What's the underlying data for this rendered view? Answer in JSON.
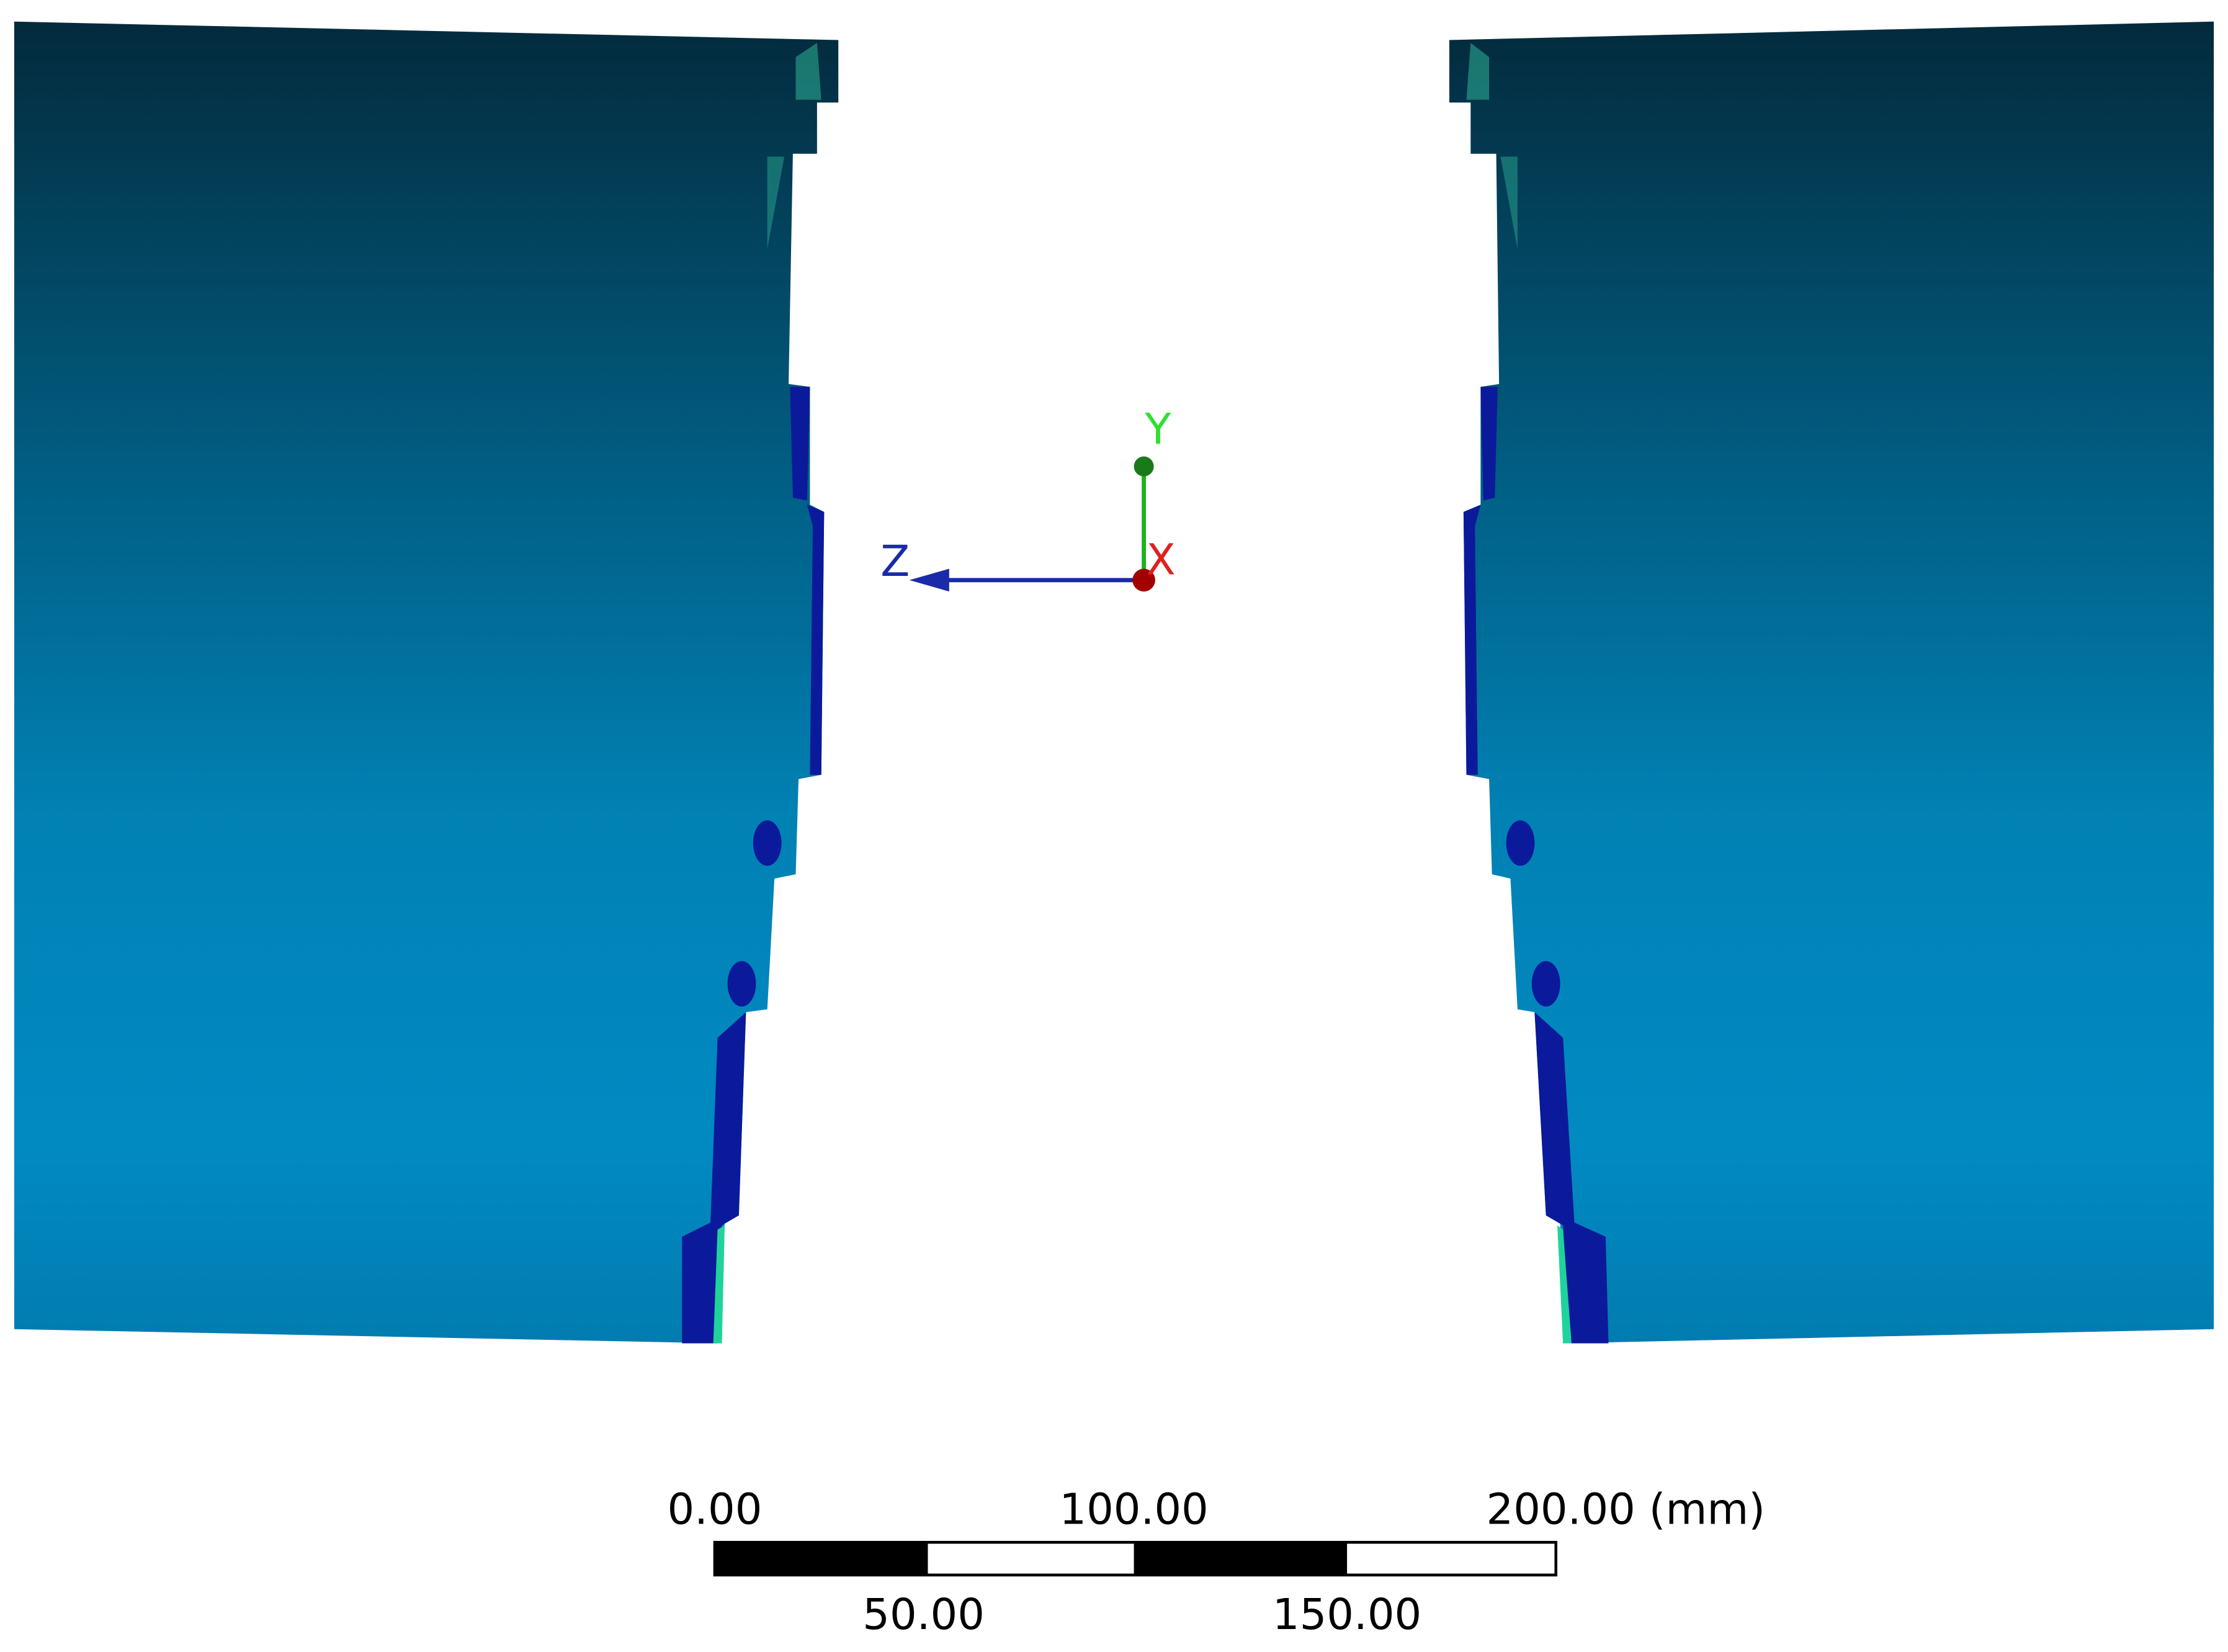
{
  "triad": {
    "y_label": "Y",
    "z_label": "Z",
    "x_label": "X"
  },
  "scale_bar": {
    "top_labels": [
      "0.00",
      "100.00",
      "200.00 (mm)"
    ],
    "bottom_labels": [
      "50.00",
      "150.00"
    ]
  }
}
